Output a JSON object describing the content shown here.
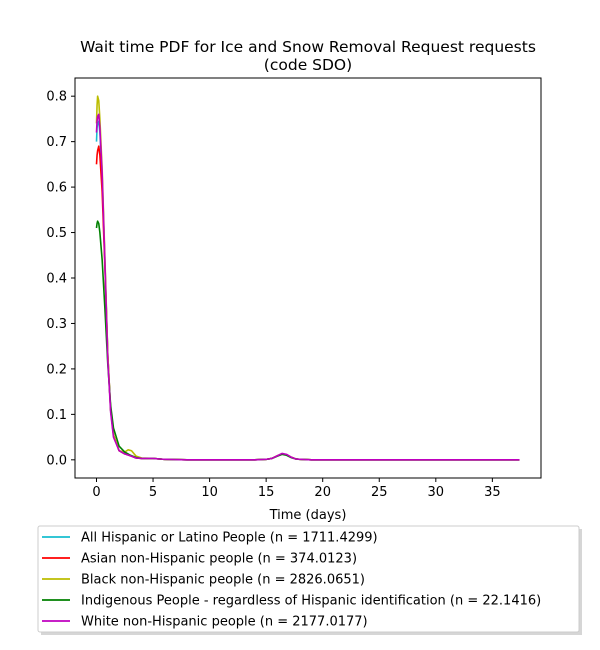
{
  "chart_data": {
    "type": "line",
    "title_line1": "Wait time PDF for Ice and Snow Removal Request  requests",
    "title_line2": "(code SDO)",
    "xlabel": "Time (days)",
    "ylabel": "",
    "xlim": [
      -1.9,
      39.3
    ],
    "ylim": [
      -0.04,
      0.84
    ],
    "xticks": [
      0,
      5,
      10,
      15,
      20,
      25,
      30,
      35
    ],
    "yticks": [
      0.0,
      0.1,
      0.2,
      0.3,
      0.4,
      0.5,
      0.6,
      0.7,
      0.8
    ],
    "grid": false,
    "legend_position": "below",
    "series": [
      {
        "name": "All Hispanic or Latino People (n = 1711.4299)",
        "color": "#17becf",
        "x": [
          0,
          0.05,
          0.1,
          0.2,
          0.3,
          0.5,
          0.75,
          1.0,
          1.25,
          1.5,
          2.0,
          2.5,
          3.0,
          3.5,
          4.0,
          5.0,
          6.0,
          8.0,
          10.0,
          14.0,
          15.0,
          15.5,
          16.0,
          16.4,
          16.8,
          17.2,
          17.6,
          18.0,
          19.0,
          25.0,
          30.0,
          37.4
        ],
        "y": [
          0.7,
          0.73,
          0.74,
          0.745,
          0.72,
          0.62,
          0.43,
          0.23,
          0.11,
          0.055,
          0.02,
          0.013,
          0.009,
          0.004,
          0.003,
          0.003,
          0.001,
          0.0,
          0.0,
          0.0,
          0.001,
          0.003,
          0.009,
          0.013,
          0.011,
          0.006,
          0.002,
          0.001,
          0.0,
          0.0,
          0.0,
          0.0
        ]
      },
      {
        "name": "Asian non-Hispanic people (n = 374.0123)",
        "color": "#ff0000",
        "x": [
          0,
          0.05,
          0.1,
          0.2,
          0.3,
          0.5,
          0.75,
          1.0,
          1.25,
          1.5,
          2.0,
          2.5,
          3.0,
          3.5,
          4.0,
          5.0,
          6.0,
          8.0,
          10.0,
          14.0,
          15.0,
          15.5,
          16.0,
          16.4,
          16.8,
          17.2,
          17.6,
          18.0,
          19.0,
          25.0,
          30.0,
          37.4
        ],
        "y": [
          0.65,
          0.67,
          0.68,
          0.69,
          0.67,
          0.59,
          0.42,
          0.23,
          0.11,
          0.055,
          0.02,
          0.013,
          0.009,
          0.004,
          0.003,
          0.003,
          0.001,
          0.0,
          0.0,
          0.0,
          0.001,
          0.003,
          0.009,
          0.013,
          0.011,
          0.006,
          0.002,
          0.001,
          0.0,
          0.0,
          0.0,
          0.0
        ]
      },
      {
        "name": "Black non-Hispanic people (n = 2826.0651)",
        "color": "#bcbd00",
        "x": [
          0,
          0.05,
          0.1,
          0.2,
          0.3,
          0.5,
          0.75,
          1.0,
          1.25,
          1.5,
          2.0,
          2.5,
          2.8,
          3.1,
          3.5,
          4.0,
          5.0,
          6.0,
          8.0,
          10.0,
          14.0,
          15.0,
          15.5,
          16.0,
          16.4,
          16.8,
          17.2,
          17.6,
          18.0,
          19.0,
          25.0,
          30.0,
          37.4
        ],
        "y": [
          0.74,
          0.78,
          0.8,
          0.79,
          0.75,
          0.64,
          0.44,
          0.23,
          0.11,
          0.055,
          0.02,
          0.017,
          0.022,
          0.02,
          0.008,
          0.004,
          0.003,
          0.001,
          0.0,
          0.0,
          0.0,
          0.001,
          0.003,
          0.009,
          0.013,
          0.011,
          0.006,
          0.002,
          0.001,
          0.0,
          0.0,
          0.0,
          0.0
        ]
      },
      {
        "name": "Indigenous People - regardless of Hispanic identification (n = 22.1416)",
        "color": "#008000",
        "x": [
          0,
          0.05,
          0.1,
          0.2,
          0.3,
          0.5,
          0.75,
          1.0,
          1.25,
          1.5,
          2.0,
          2.5,
          3.0,
          3.5,
          4.0,
          5.0,
          6.0,
          8.0,
          10.0,
          14.0,
          15.0,
          15.5,
          16.0,
          16.4,
          16.8,
          17.2,
          17.6,
          18.0,
          19.0,
          25.0,
          30.0,
          37.4
        ],
        "y": [
          0.51,
          0.52,
          0.525,
          0.52,
          0.5,
          0.44,
          0.33,
          0.21,
          0.12,
          0.07,
          0.03,
          0.017,
          0.01,
          0.005,
          0.003,
          0.003,
          0.001,
          0.0,
          0.0,
          0.0,
          0.001,
          0.003,
          0.008,
          0.012,
          0.01,
          0.005,
          0.002,
          0.001,
          0.0,
          0.0,
          0.0,
          0.0
        ]
      },
      {
        "name": "White non-Hispanic people (n = 2177.0177)",
        "color": "#bf00bf",
        "x": [
          0,
          0.05,
          0.1,
          0.2,
          0.3,
          0.5,
          0.75,
          1.0,
          1.25,
          1.5,
          2.0,
          2.5,
          3.0,
          3.5,
          4.0,
          5.0,
          6.0,
          8.0,
          10.0,
          14.0,
          15.0,
          15.5,
          16.0,
          16.4,
          16.8,
          17.2,
          17.6,
          18.0,
          19.0,
          25.0,
          30.0,
          37.4
        ],
        "y": [
          0.72,
          0.745,
          0.755,
          0.76,
          0.73,
          0.63,
          0.43,
          0.22,
          0.105,
          0.05,
          0.02,
          0.013,
          0.009,
          0.004,
          0.003,
          0.003,
          0.001,
          0.0,
          0.0,
          0.0,
          0.001,
          0.003,
          0.009,
          0.014,
          0.012,
          0.006,
          0.002,
          0.001,
          0.0,
          0.0,
          0.0,
          0.0
        ]
      }
    ]
  }
}
